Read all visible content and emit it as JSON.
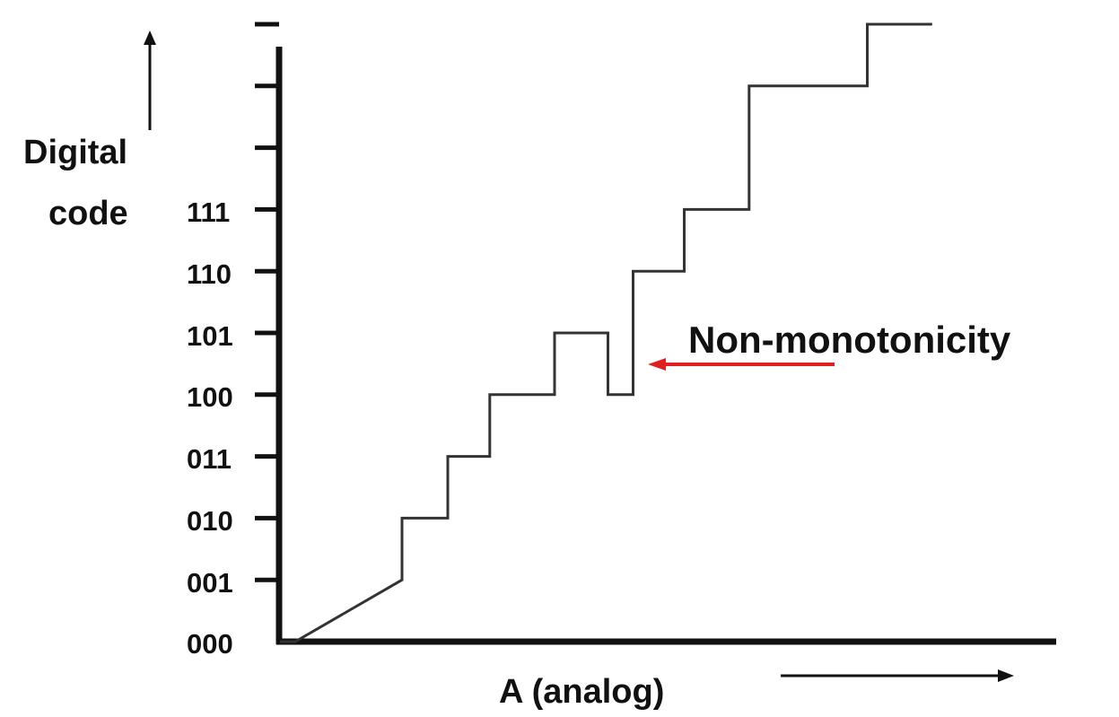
{
  "chart_data": {
    "type": "line",
    "ylabel": [
      "Digital",
      "code"
    ],
    "xlabel": "A (analog)",
    "y_tick_labels": [
      "000",
      "001",
      "010",
      "011",
      "100",
      "101",
      "110",
      "111",
      "",
      "",
      ""
    ],
    "series": [
      {
        "x": [
          0,
          0.2,
          1.6,
          1.6,
          2.2,
          2.2,
          2.75,
          2.75,
          3.6,
          3.6,
          4.3,
          4.3,
          4.63,
          4.63,
          5.3,
          5.3,
          6.15,
          6.15,
          7.7,
          7.7,
          8.55
        ],
        "y": [
          0,
          0,
          1,
          2,
          2,
          3,
          3,
          4,
          4,
          5,
          5,
          4,
          4,
          6,
          6,
          7,
          7,
          9,
          9,
          10,
          10
        ],
        "steps": [
          [
            0.2,
            1
          ],
          [
            1.6,
            2
          ],
          [
            2.2,
            3
          ],
          [
            2.75,
            4
          ],
          [
            3.6,
            5
          ],
          [
            4.3,
            4
          ],
          [
            4.63,
            6
          ],
          [
            5.3,
            7
          ],
          [
            6.15,
            9
          ],
          [
            7.7,
            10
          ]
        ]
      }
    ],
    "annotations": [
      {
        "text": "Non-monotonicity",
        "points_to": {
          "x": 4.63,
          "y": 4.5
        },
        "arrow_color": "#e02020"
      }
    ],
    "colors": {
      "axis": "#111111",
      "staircase": "#333333",
      "arrow": "#e02020"
    }
  }
}
